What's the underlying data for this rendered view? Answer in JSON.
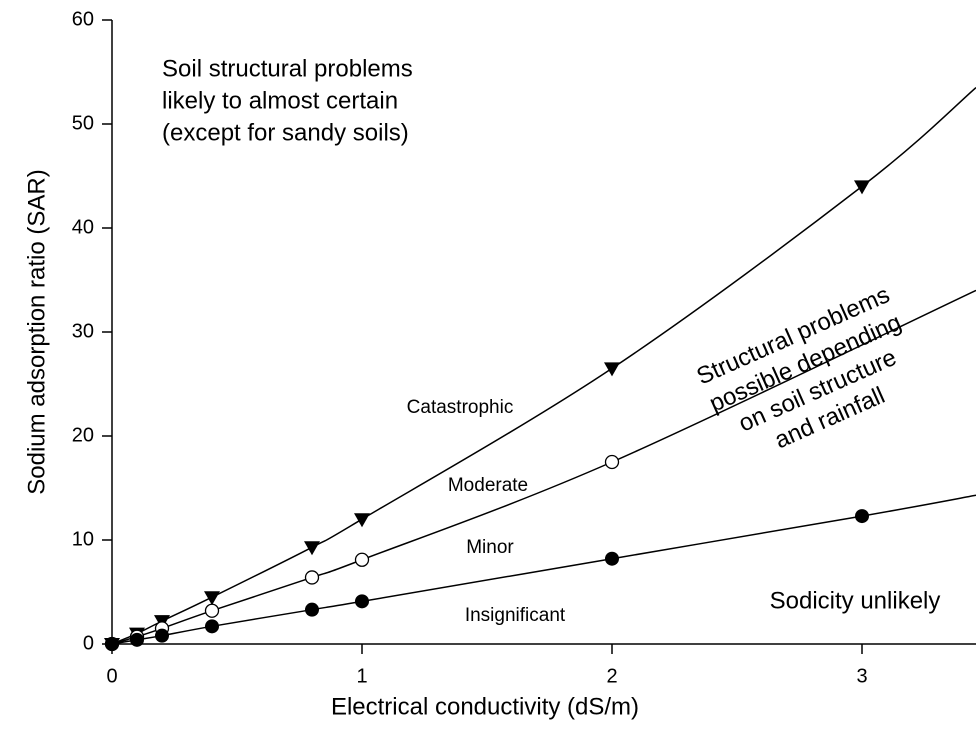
{
  "chart_data": {
    "type": "line",
    "xlabel": "Electrical conductivity (dS/m)",
    "ylabel": "Sodium adsorption ratio (SAR)",
    "xlim": [
      0,
      3.456
    ],
    "xticks": [
      0,
      1,
      2,
      3
    ],
    "ylim": [
      0,
      60
    ],
    "yticks": [
      0,
      10,
      20,
      30,
      40,
      50,
      60
    ],
    "series": [
      {
        "marker": "triangle-down",
        "color": "#000000",
        "x": [
          0,
          0.1,
          0.2,
          0.4,
          0.8,
          1,
          2,
          3
        ],
        "values": [
          0,
          1,
          2.2,
          4.5,
          9.3,
          12,
          26.5,
          44
        ],
        "line_x": [
          0,
          0.1,
          0.2,
          0.4,
          0.8,
          1,
          2,
          3,
          3.456
        ],
        "line_values": [
          0,
          1,
          2.2,
          4.5,
          9.3,
          12,
          26.5,
          44,
          53.5
        ]
      },
      {
        "marker": "circle-open",
        "color": "#000000",
        "x": [
          0,
          0.1,
          0.2,
          0.4,
          0.8,
          1,
          2
        ],
        "values": [
          0,
          0.7,
          1.5,
          3.2,
          6.4,
          8.1,
          17.5
        ],
        "line_x": [
          0,
          0.1,
          0.2,
          0.4,
          0.8,
          1,
          2,
          3.456
        ],
        "line_values": [
          0,
          0.7,
          1.5,
          3.2,
          6.4,
          8.1,
          17.5,
          34
        ]
      },
      {
        "marker": "circle",
        "color": "#000000",
        "x": [
          0,
          0.1,
          0.2,
          0.4,
          0.8,
          1,
          2,
          3
        ],
        "values": [
          0,
          0.4,
          0.8,
          1.7,
          3.3,
          4.1,
          8.2,
          12.3
        ],
        "line_x": [
          0,
          0.1,
          0.2,
          0.4,
          0.8,
          1,
          2,
          3,
          3.456
        ],
        "line_values": [
          0,
          0.4,
          0.8,
          1.7,
          3.3,
          4.1,
          8.2,
          12.3,
          14.3
        ]
      }
    ],
    "annotations": [
      [
        "Soil structural problems",
        "likely to almost certain",
        "(except for sandy soils)"
      ],
      [
        "Structural problems",
        "possible depending",
        "on soil structure",
        "and rainfall"
      ],
      [
        "Catastrophic"
      ],
      [
        "Moderate"
      ],
      [
        "Minor"
      ],
      [
        "Insignificant"
      ],
      [
        "Sodicity unlikely"
      ]
    ]
  }
}
